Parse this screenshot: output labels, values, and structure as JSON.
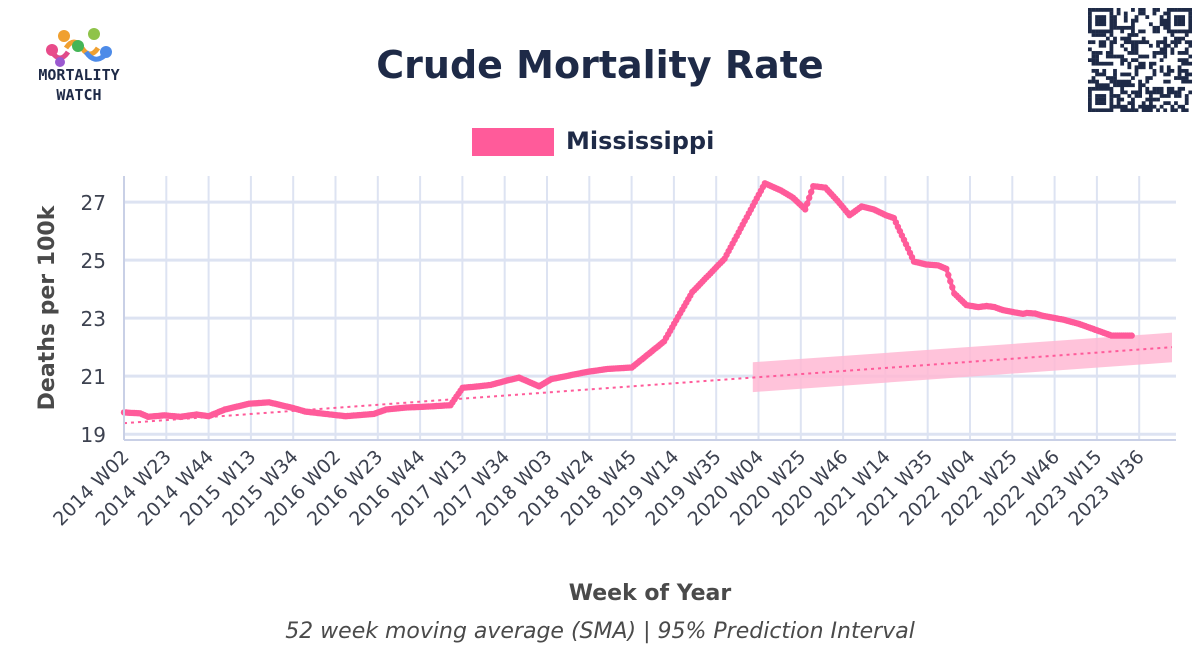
{
  "logo": {
    "line1": "MORTALITY",
    "line2": "WATCH"
  },
  "chart_data": {
    "type": "line",
    "title": "Crude Mortality Rate",
    "xlabel": "Week of Year",
    "ylabel": "Deaths per 100k",
    "caption": "52 week moving average (SMA) | 95% Prediction Interval",
    "legend": {
      "placement": "top-center",
      "entries": [
        "Mississippi"
      ]
    },
    "grid": true,
    "ylim": [
      18.8,
      27.9
    ],
    "yticks": [
      19,
      21,
      23,
      25,
      27
    ],
    "xticks": [
      "2014 W02",
      "2014 W23",
      "2014 W44",
      "2015 W13",
      "2015 W34",
      "2016 W02",
      "2016 W23",
      "2016 W44",
      "2017 W13",
      "2017 W34",
      "2018 W03",
      "2018 W24",
      "2018 W45",
      "2019 W14",
      "2019 W35",
      "2020 W04",
      "2020 W25",
      "2020 W46",
      "2021 W14",
      "2021 W35",
      "2022 W04",
      "2022 W25",
      "2022 W46",
      "2023 W15",
      "2023 W36"
    ],
    "x_range_weeks": [
      0,
      520
    ],
    "colors": {
      "series": "#ff5b9a",
      "band": "#ffb8d3",
      "grid": "#dde3f2",
      "title": "#1e2a47"
    },
    "series": [
      {
        "name": "Mississippi",
        "x": [
          0,
          8,
          12,
          20,
          28,
          36,
          42,
          50,
          56,
          62,
          72,
          84,
          90,
          100,
          110,
          124,
          130,
          140,
          150,
          162,
          168,
          176,
          182,
          190,
          196,
          206,
          212,
          230,
          240,
          252,
          268,
          282,
          298,
          318,
          326,
          332,
          338,
          342,
          348,
          354,
          360,
          366,
          372,
          378,
          382,
          386,
          392,
          398,
          404,
          408,
          412,
          418,
          424,
          428,
          432,
          436,
          442,
          446,
          448,
          452,
          456,
          466,
          474,
          478,
          484,
          490,
          494,
          500,
          506,
          512,
          516,
          520
        ],
        "values": [
          19.75,
          19.72,
          19.6,
          19.65,
          19.6,
          19.68,
          19.62,
          19.85,
          19.95,
          20.05,
          20.1,
          19.9,
          19.78,
          19.7,
          19.62,
          19.7,
          19.85,
          19.92,
          19.95,
          20.0,
          20.6,
          20.65,
          20.7,
          20.85,
          20.95,
          20.65,
          20.9,
          21.15,
          21.25,
          21.3,
          22.2,
          23.9,
          25.05,
          27.65,
          27.4,
          27.15,
          26.75,
          27.55,
          27.5,
          27.05,
          26.55,
          26.85,
          26.75,
          26.55,
          26.45,
          25.85,
          24.95,
          24.85,
          24.82,
          24.7,
          23.85,
          23.45,
          23.38,
          23.42,
          23.38,
          23.28,
          23.2,
          23.15,
          23.18,
          23.16,
          23.08,
          22.95,
          22.8,
          22.7,
          22.55,
          22.4,
          22.4,
          22.4,
          22.4,
          22.4,
          22.4,
          22.4
        ]
      },
      {
        "name": "Baseline",
        "x": [
          0,
          520
        ],
        "values": [
          19.38,
          22.0
        ]
      }
    ],
    "prediction_interval": {
      "x": [
        312,
        520
      ],
      "lower": [
        20.45,
        21.48
      ],
      "upper": [
        21.48,
        22.5
      ]
    }
  }
}
